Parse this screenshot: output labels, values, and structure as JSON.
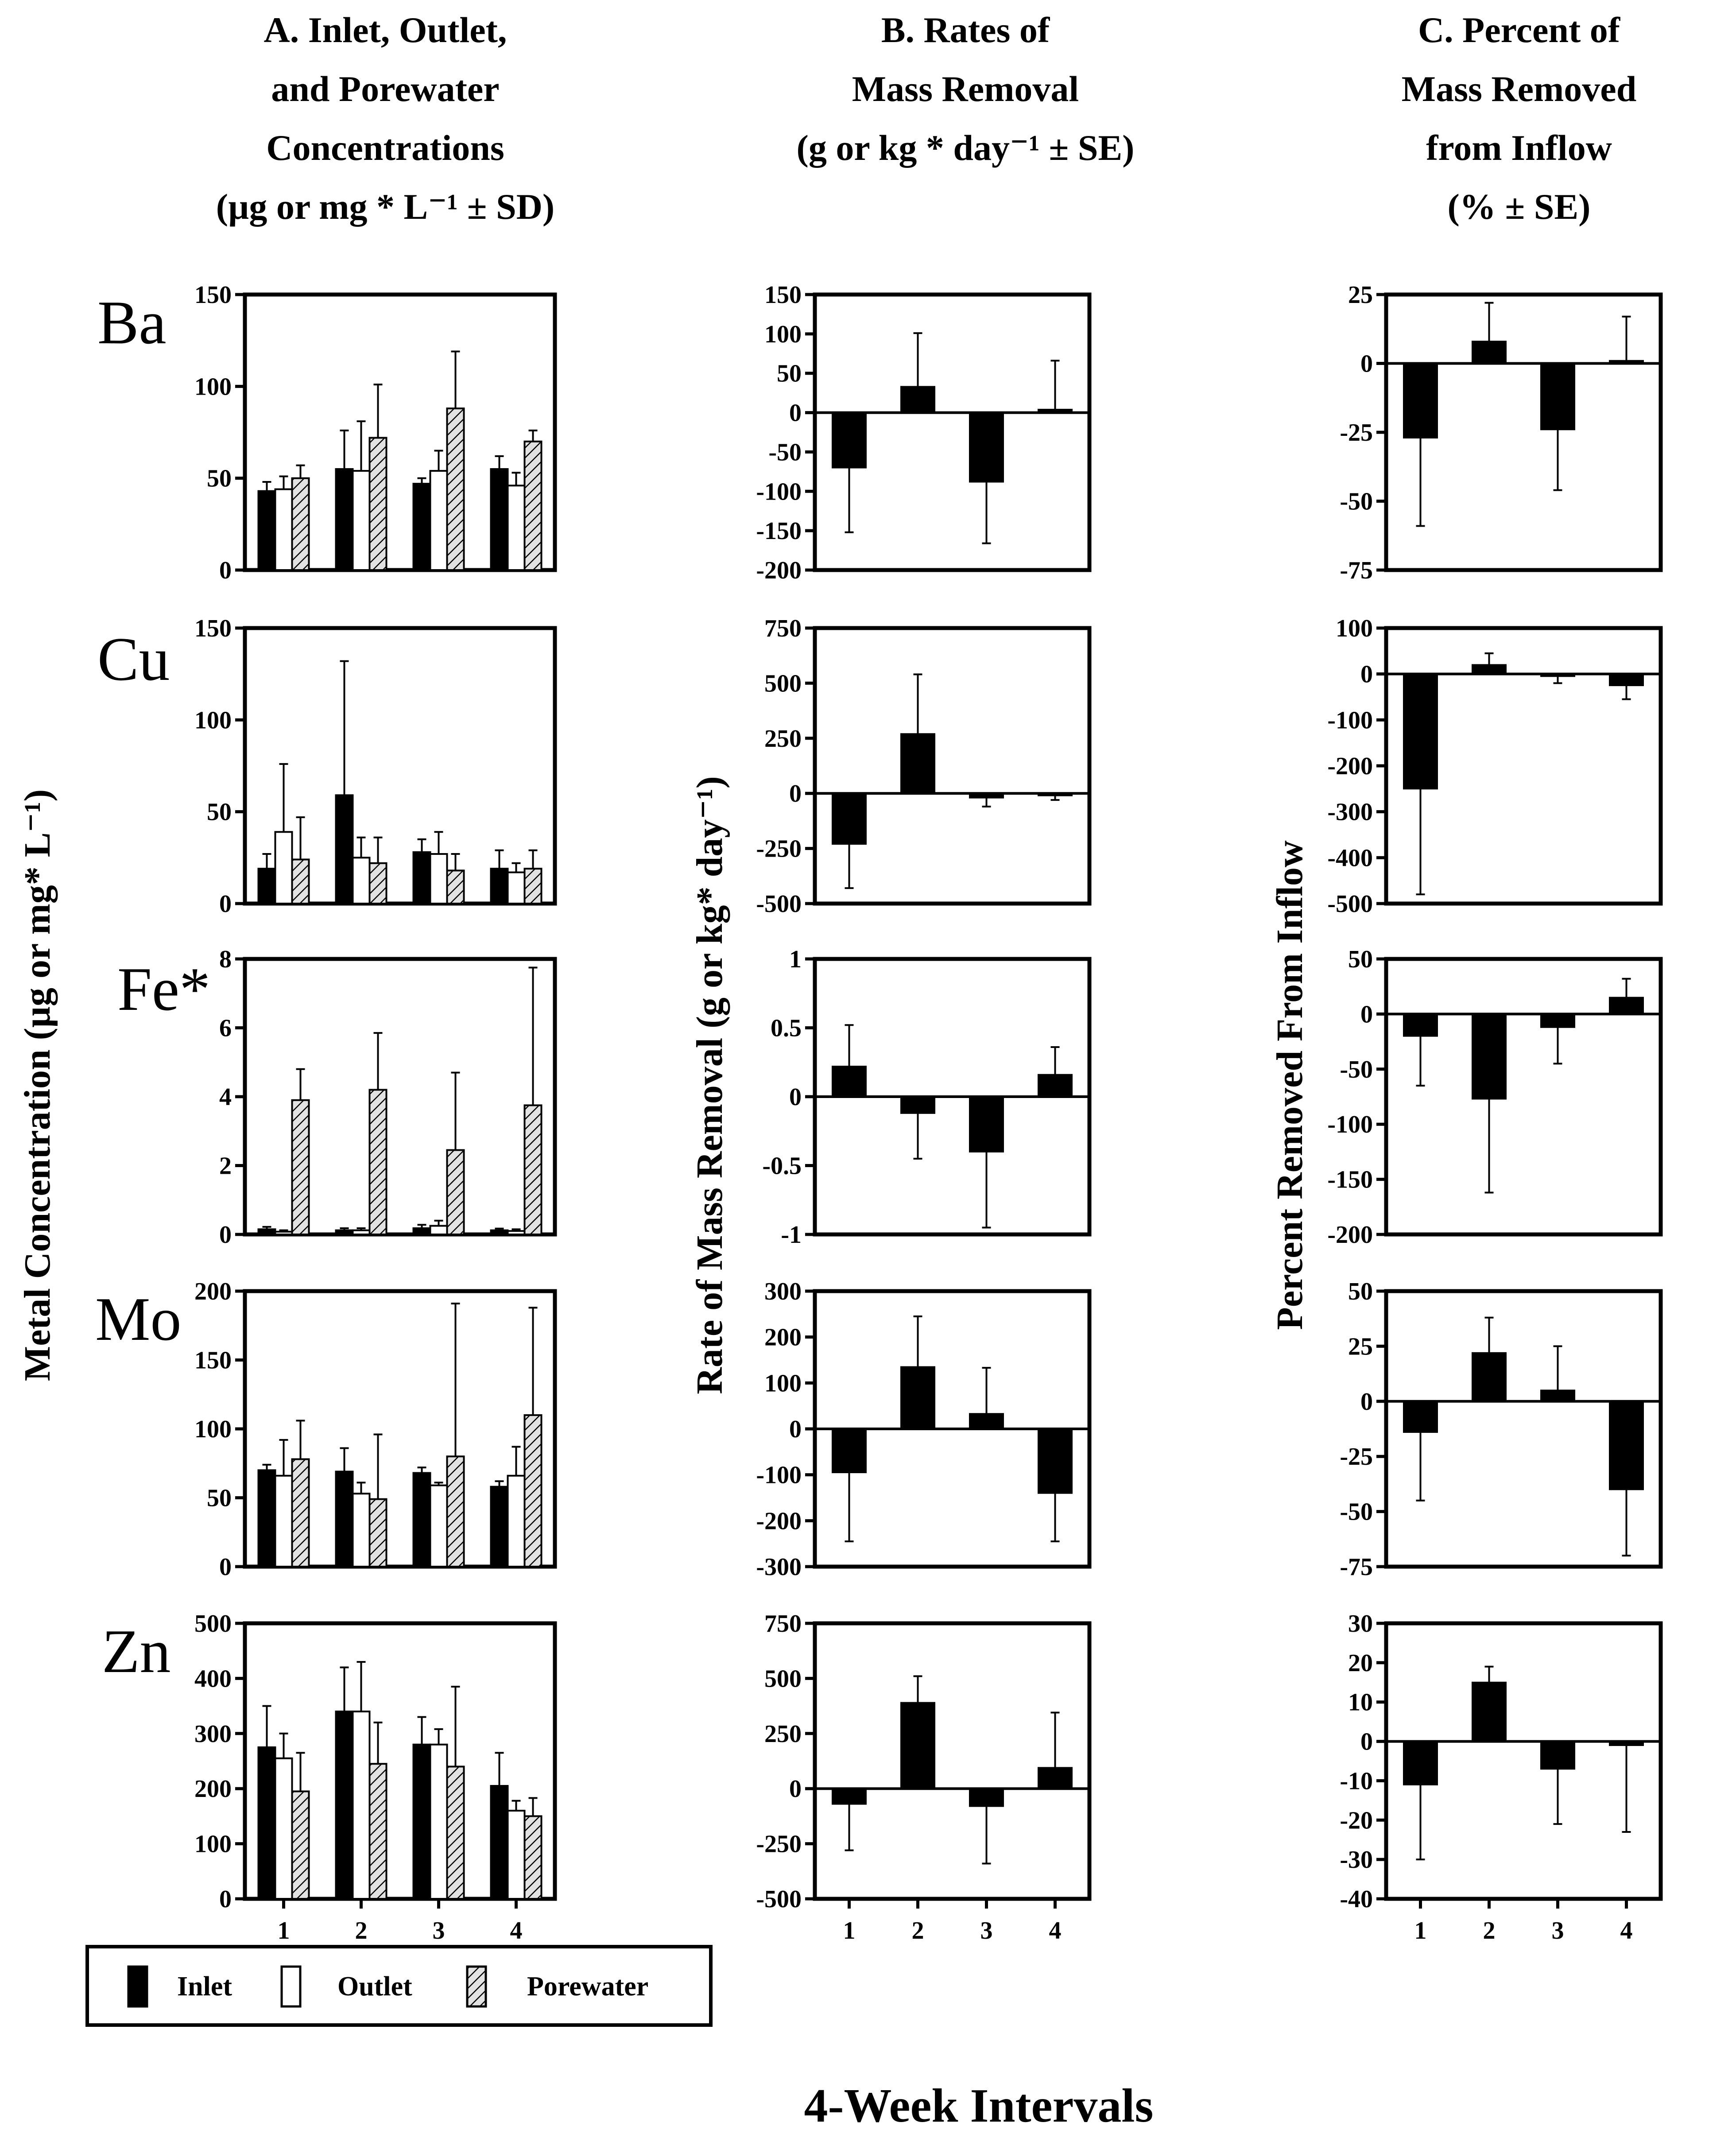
{
  "headers": {
    "A": [
      "A.    Inlet, Outlet,",
      "and Porewater",
      "Concentrations",
      "(µg or mg * L⁻¹ ± SD)"
    ],
    "B": [
      "B.    Rates of",
      "Mass Removal",
      "(g or kg * day⁻¹ ± SE)"
    ],
    "C": [
      "C.    Percent of",
      "Mass Removed",
      "from Inflow",
      "(% ± SE)"
    ]
  },
  "ylabels": {
    "A": "Metal Concentration (µg or mg* L⁻¹)",
    "B": "Rate of Mass Removal (g or kg* day⁻¹)",
    "C": "Percent Removed From Inflow"
  },
  "xlabel": "4-Week Intervals",
  "legend": [
    {
      "label": "Inlet",
      "fill": "black"
    },
    {
      "label": "Outlet",
      "fill": "white"
    },
    {
      "label": "Porewater",
      "fill": "hatch"
    }
  ],
  "elements": [
    "Ba",
    "Cu",
    "Fe*",
    "Mo",
    "Zn"
  ],
  "chart_data": [
    {
      "type": "bar",
      "element": "Ba",
      "categories": [
        "1",
        "2",
        "3",
        "4"
      ],
      "A": {
        "ylim": [
          0,
          150
        ],
        "ticks": [
          0,
          50,
          100,
          150
        ],
        "series": [
          {
            "name": "Inlet",
            "values": [
              43,
              55,
              47,
              55
            ],
            "err": [
              5,
              21,
              3,
              7
            ]
          },
          {
            "name": "Outlet",
            "values": [
              44,
              54,
              54,
              46
            ],
            "err": [
              7,
              27,
              11,
              7
            ]
          },
          {
            "name": "Porewater",
            "values": [
              50,
              72,
              88,
              70
            ],
            "err": [
              7,
              29,
              31,
              6
            ]
          }
        ]
      },
      "B": {
        "ylim": [
          -200,
          150
        ],
        "ticks": [
          -200,
          -150,
          -100,
          -50,
          0,
          50,
          100,
          150
        ],
        "values": [
          -70,
          33,
          -88,
          4
        ],
        "err": [
          82,
          68,
          78,
          62
        ]
      },
      "C": {
        "ylim": [
          -75,
          25
        ],
        "ticks": [
          -75,
          -50,
          -25,
          0,
          25
        ],
        "values": [
          -27,
          8,
          -24,
          1
        ],
        "err": [
          32,
          14,
          22,
          16
        ]
      }
    },
    {
      "type": "bar",
      "element": "Cu",
      "categories": [
        "1",
        "2",
        "3",
        "4"
      ],
      "A": {
        "ylim": [
          0,
          150
        ],
        "ticks": [
          0,
          50,
          100,
          150
        ],
        "series": [
          {
            "name": "Inlet",
            "values": [
              19,
              59,
              28,
              19
            ],
            "err": [
              8,
              73,
              7,
              10
            ]
          },
          {
            "name": "Outlet",
            "values": [
              39,
              25,
              27,
              17
            ],
            "err": [
              37,
              11,
              12,
              5
            ]
          },
          {
            "name": "Porewater",
            "values": [
              24,
              22,
              18,
              19
            ],
            "err": [
              23,
              14,
              9,
              10
            ]
          }
        ]
      },
      "B": {
        "ylim": [
          -500,
          750
        ],
        "ticks": [
          -500,
          -250,
          0,
          250,
          500,
          750
        ],
        "values": [
          -230,
          270,
          -20,
          -10
        ],
        "err": [
          200,
          270,
          40,
          20
        ]
      },
      "C": {
        "ylim": [
          -500,
          100
        ],
        "ticks": [
          -500,
          -400,
          -300,
          -200,
          -100,
          0,
          100
        ],
        "values": [
          -250,
          20,
          -5,
          -25
        ],
        "err": [
          230,
          25,
          15,
          30
        ]
      }
    },
    {
      "type": "bar",
      "element": "Fe*",
      "categories": [
        "1",
        "2",
        "3",
        "4"
      ],
      "A": {
        "ylim": [
          0,
          8
        ],
        "ticks": [
          0,
          2,
          4,
          6,
          8
        ],
        "series": [
          {
            "name": "Inlet",
            "values": [
              0.15,
              0.12,
              0.18,
              0.12
            ],
            "err": [
              0.07,
              0.06,
              0.1,
              0.05
            ]
          },
          {
            "name": "Outlet",
            "values": [
              0.08,
              0.12,
              0.25,
              0.1
            ],
            "err": [
              0.04,
              0.06,
              0.15,
              0.05
            ]
          },
          {
            "name": "Porewater",
            "values": [
              3.9,
              4.2,
              2.45,
              3.75
            ],
            "err": [
              0.9,
              1.65,
              2.25,
              4.0
            ]
          }
        ]
      },
      "B": {
        "ylim": [
          -1,
          1
        ],
        "ticks": [
          -1,
          -0.5,
          0,
          0.5,
          1
        ],
        "values": [
          0.22,
          -0.12,
          -0.4,
          0.16
        ],
        "err": [
          0.3,
          0.33,
          0.55,
          0.2
        ]
      },
      "C": {
        "ylim": [
          -200,
          50
        ],
        "ticks": [
          -200,
          -150,
          -100,
          -50,
          0,
          50
        ],
        "values": [
          -20,
          -77,
          -12,
          15
        ],
        "err": [
          45,
          85,
          33,
          17
        ]
      }
    },
    {
      "type": "bar",
      "element": "Mo",
      "categories": [
        "1",
        "2",
        "3",
        "4"
      ],
      "A": {
        "ylim": [
          0,
          200
        ],
        "ticks": [
          0,
          50,
          100,
          150,
          200
        ],
        "series": [
          {
            "name": "Inlet",
            "values": [
              70,
              69,
              68,
              58
            ],
            "err": [
              4,
              17,
              4,
              4
            ]
          },
          {
            "name": "Outlet",
            "values": [
              66,
              53,
              59,
              66
            ],
            "err": [
              26,
              8,
              2,
              21
            ]
          },
          {
            "name": "Porewater",
            "values": [
              78,
              49,
              80,
              110
            ],
            "err": [
              28,
              47,
              111,
              78
            ]
          }
        ]
      },
      "B": {
        "ylim": [
          -300,
          300
        ],
        "ticks": [
          -300,
          -200,
          -100,
          0,
          100,
          200,
          300
        ],
        "values": [
          -95,
          135,
          33,
          -140
        ],
        "err": [
          150,
          110,
          100,
          105
        ]
      },
      "C": {
        "ylim": [
          -75,
          50
        ],
        "ticks": [
          -75,
          -50,
          -25,
          0,
          25,
          50
        ],
        "values": [
          -14,
          22,
          5,
          -40
        ],
        "err": [
          31,
          16,
          20,
          30
        ]
      }
    },
    {
      "type": "bar",
      "element": "Zn",
      "categories": [
        "1",
        "2",
        "3",
        "4"
      ],
      "A": {
        "ylim": [
          0,
          500
        ],
        "ticks": [
          0,
          100,
          200,
          300,
          400,
          500
        ],
        "series": [
          {
            "name": "Inlet",
            "values": [
              275,
              340,
              280,
              205
            ],
            "err": [
              75,
              80,
              50,
              60
            ]
          },
          {
            "name": "Outlet",
            "values": [
              255,
              340,
              280,
              160
            ],
            "err": [
              45,
              90,
              28,
              18
            ]
          },
          {
            "name": "Porewater",
            "values": [
              195,
              245,
              240,
              150
            ],
            "err": [
              70,
              75,
              145,
              33
            ]
          }
        ]
      },
      "B": {
        "ylim": [
          -500,
          750
        ],
        "ticks": [
          -500,
          -250,
          0,
          250,
          500,
          750
        ],
        "values": [
          -70,
          390,
          -80,
          95
        ],
        "err": [
          210,
          120,
          260,
          250
        ]
      },
      "C": {
        "ylim": [
          -40,
          30
        ],
        "ticks": [
          -40,
          -30,
          -20,
          -10,
          0,
          10,
          20,
          30
        ],
        "values": [
          -11,
          15,
          -7,
          -1
        ],
        "err": [
          19,
          4,
          14,
          22
        ]
      }
    }
  ]
}
